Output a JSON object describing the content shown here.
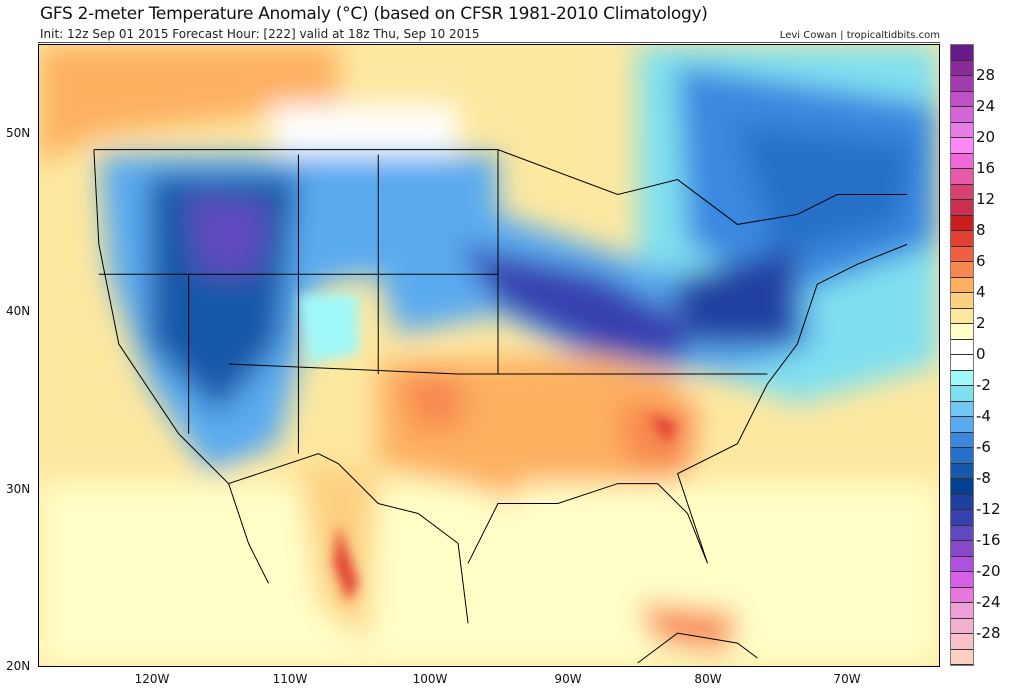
{
  "header": {
    "title": "GFS 2-meter Temperature Anomaly (°C) (based on CFSR 1981-2010 Climatology)",
    "subtitle": "Init: 12z Sep 01 2015   Forecast Hour: [222]   valid at 18z Thu, Sep 10 2015",
    "credit": "Levi Cowan | tropicaltidbits.com"
  },
  "lat_labels": [
    "50N",
    "40N",
    "30N",
    "20N"
  ],
  "lon_labels": [
    "120W",
    "110W",
    "100W",
    "90W",
    "80W",
    "70W"
  ],
  "colorbar": {
    "labels": [
      "28",
      "24",
      "20",
      "16",
      "12",
      "8",
      "6",
      "4",
      "2",
      "0",
      "-2",
      "-4",
      "-6",
      "-8",
      "-12",
      "-16",
      "-20",
      "-24",
      "-28"
    ],
    "colors": [
      "#6a1b8a",
      "#8a2a9a",
      "#a33ab0",
      "#c050c8",
      "#d366d8",
      "#e57ee8",
      "#ff88f8",
      "#f068d8",
      "#e85aa8",
      "#d84070",
      "#cc3050",
      "#c82020",
      "#e04030",
      "#f06040",
      "#f88850",
      "#fdb060",
      "#fdd080",
      "#fde8a0",
      "#ffffc8",
      "#ffffff",
      "#ffffff",
      "#a0f8f8",
      "#80e0f0",
      "#70c8f0",
      "#5aaaf0",
      "#3a88e0",
      "#2870c8",
      "#1858a8",
      "#044090",
      "#2040a0",
      "#3840b0",
      "#6048c0",
      "#8848c8",
      "#b050e0",
      "#d860e8",
      "#e878e0",
      "#f0a0d8",
      "#f4b0d0",
      "#f8c0c8",
      "#fcd0c0"
    ]
  }
}
